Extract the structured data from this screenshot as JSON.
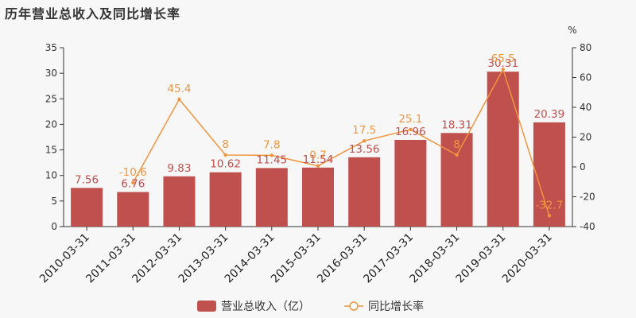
{
  "chart_data": {
    "type": "bar+line",
    "title": "历年营业总收入及同比增长率",
    "categories": [
      "2010-03-31",
      "2011-03-31",
      "2012-03-31",
      "2013-03-31",
      "2014-03-31",
      "2015-03-31",
      "2016-03-31",
      "2017-03-31",
      "2018-03-31",
      "2019-03-31",
      "2020-03-31"
    ],
    "series": [
      {
        "name": "营业总收入（亿）",
        "type": "bar",
        "axis": "left",
        "color": "#c0504d",
        "values": [
          7.56,
          6.76,
          9.83,
          10.62,
          11.45,
          11.54,
          13.56,
          16.96,
          18.31,
          30.31,
          20.39
        ]
      },
      {
        "name": "同比增长率",
        "type": "line",
        "axis": "right",
        "color": "#f0953f",
        "values": [
          null,
          -10.6,
          45.4,
          8,
          7.8,
          0.7,
          17.5,
          25.1,
          8,
          65.5,
          -32.7
        ]
      }
    ],
    "y_left": {
      "min": 0,
      "max": 35,
      "ticks": [
        0,
        5,
        10,
        15,
        20,
        25,
        30,
        35
      ]
    },
    "y_right": {
      "min": -40,
      "max": 80,
      "ticks": [
        -40,
        -20,
        0,
        20,
        40,
        60,
        80
      ],
      "unit": "%"
    },
    "grid": false,
    "legend": "bottom-center"
  }
}
